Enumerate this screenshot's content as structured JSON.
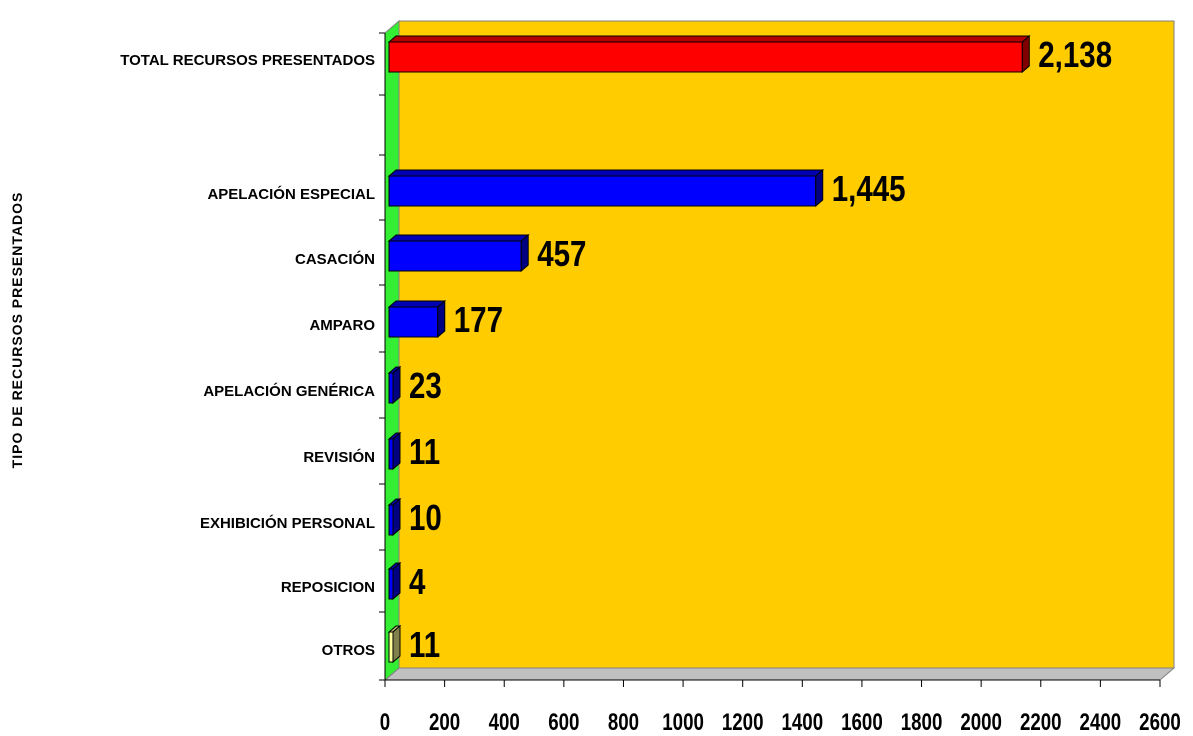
{
  "chart_data": {
    "type": "bar",
    "orientation": "horizontal",
    "ylabel": "TIPO DE RECURSOS PRESENTADOS",
    "xlim": [
      0,
      2600
    ],
    "xticks": [
      0,
      200,
      400,
      600,
      800,
      1000,
      1200,
      1400,
      1600,
      1800,
      2000,
      2200,
      2400,
      2600
    ],
    "bars": [
      {
        "category": "TOTAL RECURSOS PRESENTADOS",
        "value": 2138,
        "label": "2,138",
        "color": "#ff0000"
      },
      {
        "category": "APELACIÓN ESPECIAL",
        "value": 1445,
        "label": "1,445",
        "color": "#0000ff"
      },
      {
        "category": "CASACIÓN",
        "value": 457,
        "label": "457",
        "color": "#0000ff"
      },
      {
        "category": "AMPARO",
        "value": 177,
        "label": "177",
        "color": "#0000ff"
      },
      {
        "category": "APELACIÓN GENÉRICA",
        "value": 23,
        "label": "23",
        "color": "#0000ff"
      },
      {
        "category": "REVISIÓN",
        "value": 11,
        "label": "11",
        "color": "#0000ff"
      },
      {
        "category": "EXHIBICIÓN PERSONAL",
        "value": 10,
        "label": "10",
        "color": "#0000ff"
      },
      {
        "category": "REPOSICION",
        "value": 4,
        "label": "4",
        "color": "#0000ff"
      },
      {
        "category": "OTROS",
        "value": 11,
        "label": "11",
        "color": "#ffff99"
      }
    ],
    "grid": false,
    "colors": {
      "plot_background": "#ffcc00",
      "side_wall": "#33ee33",
      "floor": "#c0c0c0"
    }
  }
}
